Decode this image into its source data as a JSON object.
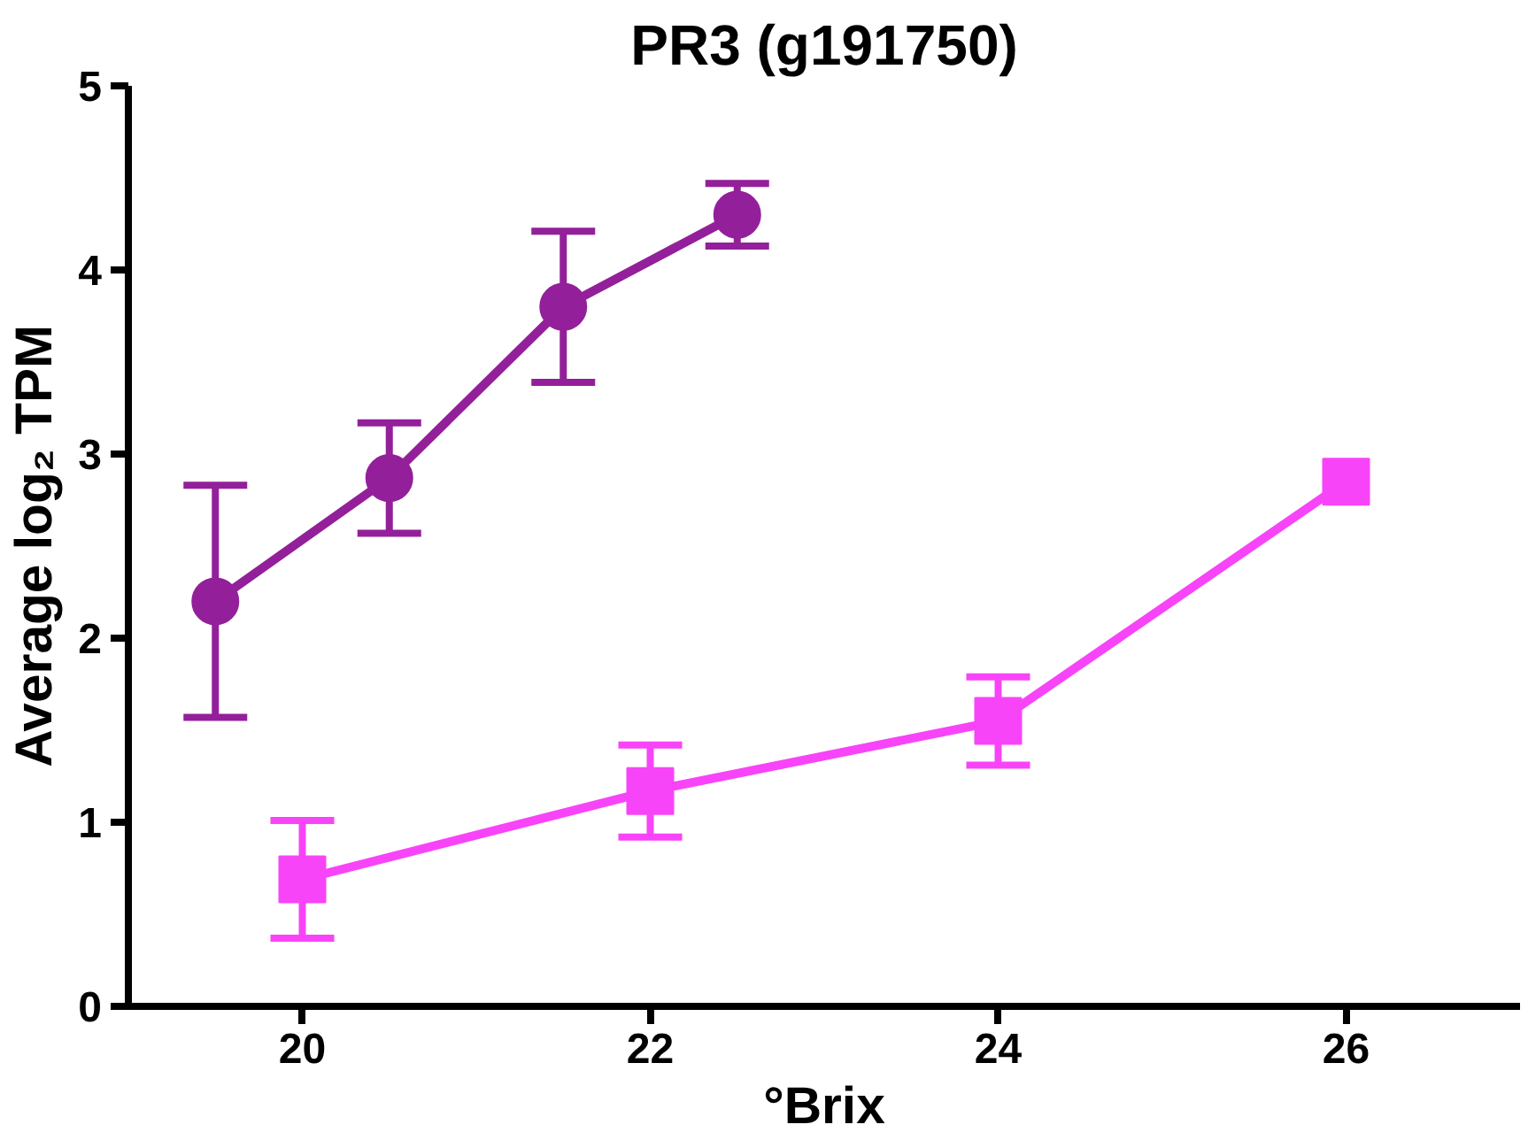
{
  "chart_data": {
    "type": "line",
    "title": "PR3 (g191750)",
    "xlabel": "°Brix",
    "ylabel": "Average log₂ TPM",
    "xlim": [
      19,
      27
    ],
    "xticks": [
      20,
      22,
      24,
      26
    ],
    "ylim": [
      0,
      5
    ],
    "yticks": [
      0,
      1,
      2,
      3,
      4,
      5
    ],
    "grid": false,
    "line_style": "solid",
    "series": [
      {
        "color": "#93209a",
        "marker": "circle",
        "x": [
          19.5,
          20.5,
          21.5,
          22.5
        ],
        "values": [
          2.2,
          2.87,
          3.8,
          4.3
        ],
        "errors": [
          0.63,
          0.3,
          0.41,
          0.17
        ]
      },
      {
        "color": "#f844f8",
        "marker": "square",
        "x": [
          20,
          22,
          24,
          26
        ],
        "values": [
          0.69,
          1.17,
          1.55,
          2.85
        ],
        "errors": [
          0.32,
          0.25,
          0.24,
          null
        ]
      }
    ]
  }
}
